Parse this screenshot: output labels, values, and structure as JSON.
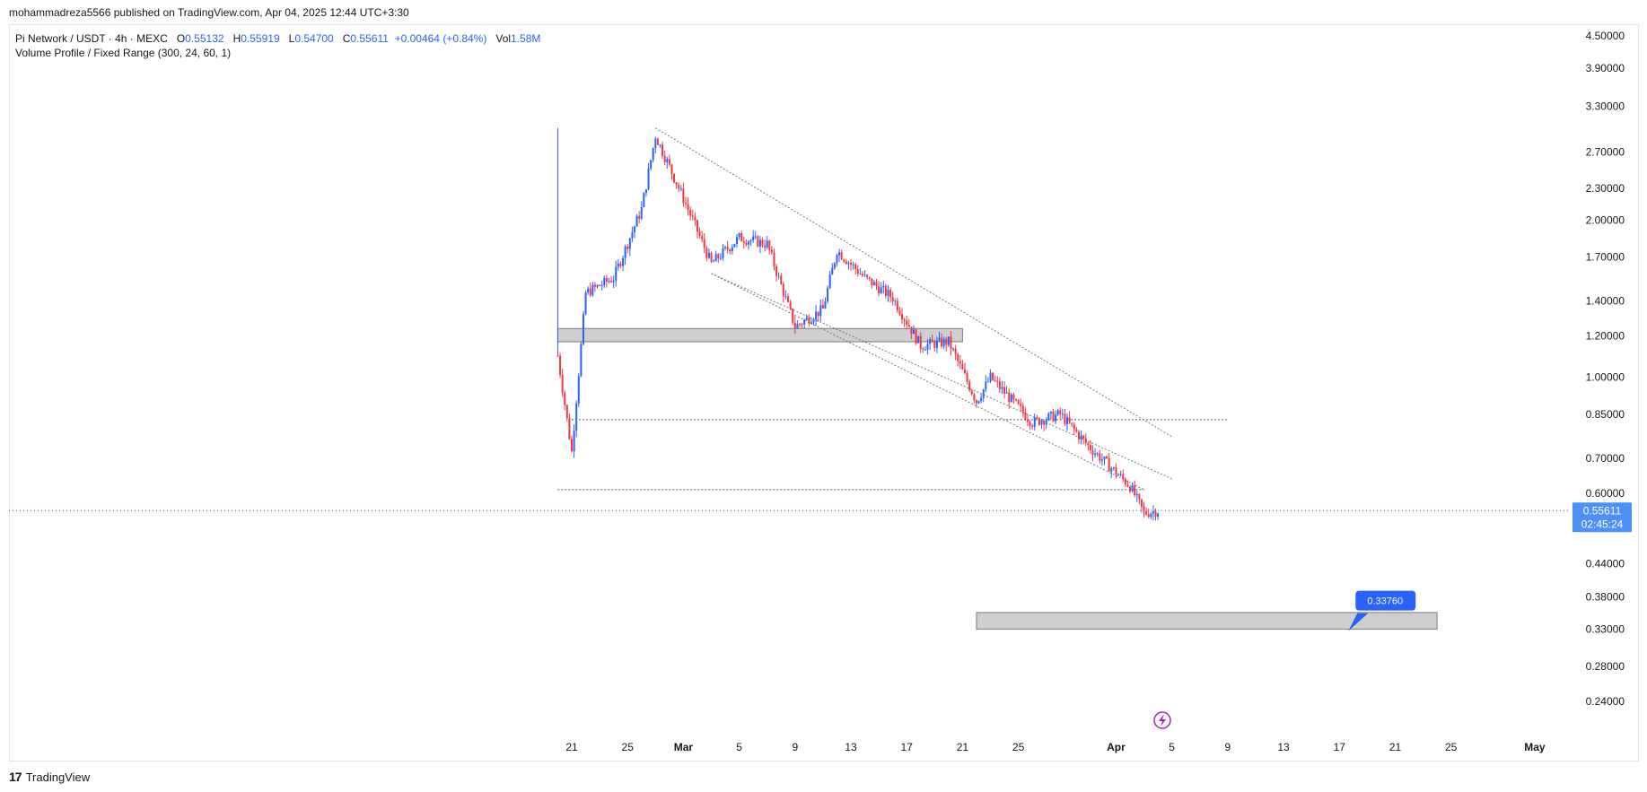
{
  "header": {
    "publisher": "mohammadreza5566 published on TradingView.com, Apr 04, 2025 12:44 UTC+3:30"
  },
  "legend": {
    "symbol": "Pi Network / USDT · 4h · MEXC",
    "o_label": "O",
    "o": "0.55132",
    "h_label": "H",
    "h": "0.55919",
    "l_label": "L",
    "l": "0.54700",
    "c_label": "C",
    "c": "0.55611",
    "change": "+0.00464 (+0.84%)",
    "vol_label": "Vol",
    "vol": "1.58M",
    "indicator": "Volume Profile / Fixed Range (300, 24, 60, 1)"
  },
  "footer": {
    "brand": "TradingView",
    "logo_text": "17"
  },
  "colors": {
    "up": "#2962ff",
    "down": "#f23645",
    "accent": "#2962ff",
    "zone": "#cfcfcf"
  },
  "chart_data": {
    "type": "candlestick",
    "symbol": "PIUSDT",
    "timeframe": "4h",
    "y_scale": "log",
    "y_ticks": [
      "4.50000",
      "3.90000",
      "3.30000",
      "2.70000",
      "2.30000",
      "2.00000",
      "1.70000",
      "1.40000",
      "1.20000",
      "1.00000",
      "0.85000",
      "0.70000",
      "0.60000",
      "0.44000",
      "0.38000",
      "0.33000",
      "0.28000",
      "0.24000"
    ],
    "x_ticks": [
      "21",
      "25",
      "Mar",
      "5",
      "9",
      "13",
      "17",
      "21",
      "25",
      "Apr",
      "5",
      "9",
      "13",
      "17",
      "21",
      "25",
      "May"
    ],
    "last_price": "0.55611",
    "countdown": "02:45:24",
    "target_label": "0.33760",
    "close_path": [
      [
        "2025-02-20",
        1.1
      ],
      [
        "2025-02-21",
        0.72
      ],
      [
        "2025-02-22",
        1.45
      ],
      [
        "2025-02-24",
        1.55
      ],
      [
        "2025-02-26",
        2.1
      ],
      [
        "2025-02-27",
        2.9
      ],
      [
        "2025-03-01",
        2.2
      ],
      [
        "2025-03-03",
        1.65
      ],
      [
        "2025-03-05",
        1.85
      ],
      [
        "2025-03-07",
        1.8
      ],
      [
        "2025-03-09",
        1.25
      ],
      [
        "2025-03-11",
        1.35
      ],
      [
        "2025-03-12",
        1.75
      ],
      [
        "2025-03-14",
        1.55
      ],
      [
        "2025-03-16",
        1.42
      ],
      [
        "2025-03-18",
        1.15
      ],
      [
        "2025-03-20",
        1.17
      ],
      [
        "2025-03-22",
        0.9
      ],
      [
        "2025-03-23",
        1.0
      ],
      [
        "2025-03-26",
        0.82
      ],
      [
        "2025-03-28",
        0.85
      ],
      [
        "2025-03-30",
        0.74
      ],
      [
        "2025-04-02",
        0.62
      ],
      [
        "2025-04-03",
        0.55
      ],
      [
        "2025-04-04",
        0.556
      ]
    ],
    "levels": [
      {
        "name": "resistance-zone",
        "from": 1.17,
        "to": 1.24,
        "start": "2025-02-20",
        "end": "2025-03-21"
      },
      {
        "name": "dotted-level",
        "value": 0.83,
        "start": "2025-02-21",
        "end": "2025-04-09"
      },
      {
        "name": "support-line",
        "value": 0.61,
        "start": "2025-02-20",
        "end": "2025-04-03"
      },
      {
        "name": "target-zone",
        "from": 0.33,
        "to": 0.355,
        "start": "2025-03-22",
        "end": "2025-04-24"
      }
    ]
  }
}
